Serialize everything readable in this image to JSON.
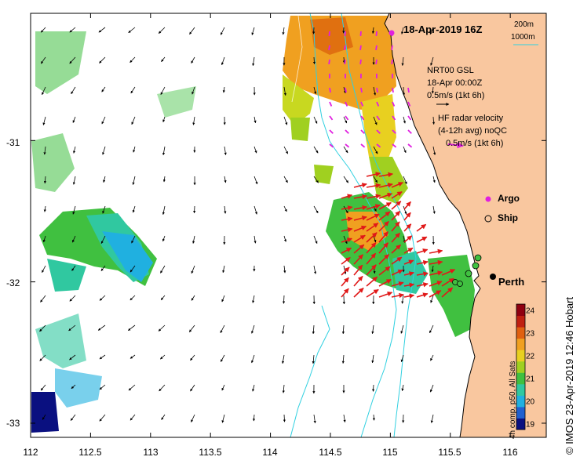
{
  "title": "18-Apr-2019 16Z",
  "scale_bar": {
    "top": "200m",
    "bottom": "1000m"
  },
  "model_legend": {
    "line1": "NRT00 GSL",
    "line2": "18-Apr 00:00Z",
    "line3": "0.5m/s (1kt 6h)"
  },
  "radar_legend": {
    "line1": "HF radar velocity",
    "line2": "(4-12h avg) noQC",
    "line3": "0.5m/s (1kt 6h)"
  },
  "markers": {
    "argo": "Argo",
    "ship": "Ship"
  },
  "city": {
    "name": "Perth",
    "lon": 115.86,
    "lat": -31.95
  },
  "colorbar": {
    "title": "4h comp, p50, All Sats",
    "ticks": [
      "24",
      "23",
      "22",
      "21",
      "20",
      "19"
    ],
    "min": 18.8,
    "max": 24.4,
    "colors": [
      "#0a1080",
      "#2060d0",
      "#20b0e0",
      "#30c8a0",
      "#40c040",
      "#a0d020",
      "#e8d020",
      "#f0a020",
      "#e06010",
      "#c02010",
      "#900010"
    ]
  },
  "axes": {
    "x_ticks": [
      "112",
      "112.5",
      "113",
      "113.5",
      "114",
      "114.5",
      "115",
      "115.5",
      "116"
    ],
    "x_values": [
      112,
      112.5,
      113,
      113.5,
      114,
      114.5,
      115,
      115.5,
      116
    ],
    "y_ticks": [
      "-31",
      "-32",
      "-33"
    ],
    "y_values": [
      -31,
      -32,
      -33
    ],
    "lon_range": [
      112,
      116.3
    ],
    "lat_range": [
      -30.1,
      -33.1
    ]
  },
  "credit": "© IMOS 23-Apr-2019 12:46 Hobart",
  "colors": {
    "land": "#f9c79f",
    "model_arrow": "#000000",
    "radar_arrow": "#e01818",
    "argo": "#e020e0",
    "bathy": "#30d0e0"
  }
}
